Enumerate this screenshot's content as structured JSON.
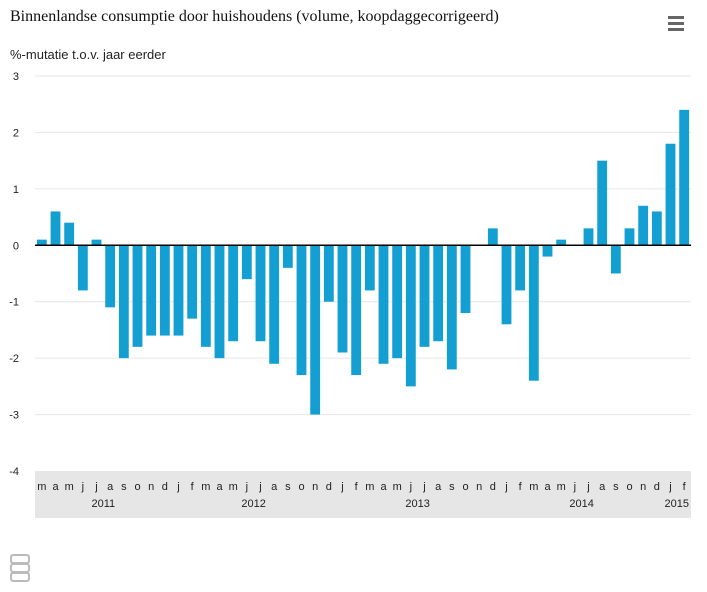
{
  "title": "Binnenlandse consumptie door huishoudens (volume, koopdaggecorrigeerd)",
  "subtitle": "%-mutatie t.o.v. jaar eerder",
  "menu_icon": "hamburger-menu-icon",
  "logo_icon": "cbs-logo-icon",
  "colors": {
    "bar": "#139FD1",
    "axis_band": "#e6e6e6",
    "grid": "#e6e6e6",
    "zero_line": "#000000"
  },
  "chart_data": {
    "type": "bar",
    "title": "Binnenlandse consumptie door huishoudens (volume, koopdaggecorrigeerd)",
    "ylabel": "%-mutatie t.o.v. jaar eerder",
    "ylim": [
      -4,
      3
    ],
    "yticks": [
      3,
      2,
      1,
      0,
      -1,
      -2,
      -3,
      -4
    ],
    "grid": true,
    "categories": [
      "m",
      "a",
      "m",
      "j",
      "j",
      "a",
      "s",
      "o",
      "n",
      "d",
      "j",
      "f",
      "m",
      "a",
      "m",
      "j",
      "j",
      "a",
      "s",
      "o",
      "n",
      "d",
      "j",
      "f",
      "m",
      "a",
      "m",
      "j",
      "j",
      "a",
      "s",
      "o",
      "n",
      "d",
      "j",
      "f",
      "m",
      "a",
      "m",
      "j",
      "j",
      "a",
      "s",
      "o",
      "n",
      "d",
      "j",
      "f"
    ],
    "values": [
      0.1,
      0.6,
      0.4,
      -0.8,
      0.1,
      -1.1,
      -2.0,
      -1.8,
      -1.6,
      -1.6,
      -1.6,
      -1.3,
      -1.8,
      -2.0,
      -1.7,
      -0.6,
      -1.7,
      -2.1,
      -0.4,
      -2.3,
      -3.0,
      -1.0,
      -1.9,
      -2.3,
      -0.8,
      -2.1,
      -2.0,
      -2.5,
      -1.8,
      -1.7,
      -2.2,
      -1.2,
      0.0,
      0.3,
      -1.4,
      -0.8,
      -2.4,
      -0.2,
      0.1,
      0.0,
      0.3,
      1.5,
      -0.5,
      0.3,
      0.7,
      0.6,
      1.8,
      2.4
    ],
    "years": [
      {
        "label": "2011",
        "start": 0,
        "end": 9
      },
      {
        "label": "2012",
        "start": 10,
        "end": 21
      },
      {
        "label": "2013",
        "start": 22,
        "end": 33
      },
      {
        "label": "2014",
        "start": 34,
        "end": 45
      },
      {
        "label": "2015",
        "start": 46,
        "end": 47
      }
    ]
  }
}
